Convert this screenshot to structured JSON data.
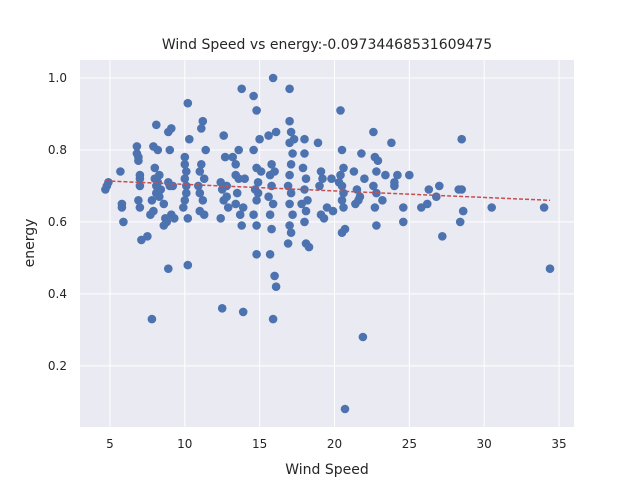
{
  "chart_data": {
    "type": "scatter",
    "title": "Wind Speed vs energy:-0.09734468531609475",
    "xlabel": "Wind Speed",
    "ylabel": "energy",
    "xlim": [
      3.0,
      36.0
    ],
    "ylim": [
      0.03,
      1.05
    ],
    "xticks": [
      5,
      10,
      15,
      20,
      25,
      30,
      35
    ],
    "yticks": [
      0.2,
      0.4,
      0.6,
      0.8,
      1.0
    ],
    "ytick_labels": [
      "0.2",
      "0.4",
      "0.6",
      "0.8",
      "1.0"
    ],
    "grid": true,
    "colors": {
      "background": "#eaeaf2",
      "grid": "#ffffff",
      "points": "#4c72b0",
      "trend": "#c44e52"
    },
    "trend_line": {
      "x": [
        4.7,
        34.4
      ],
      "y": [
        0.714,
        0.66
      ],
      "style": "dashed"
    },
    "points": [
      [
        4.7,
        0.69
      ],
      [
        4.8,
        0.7
      ],
      [
        4.9,
        0.71
      ],
      [
        5.7,
        0.74
      ],
      [
        5.8,
        0.65
      ],
      [
        5.8,
        0.64
      ],
      [
        5.9,
        0.6
      ],
      [
        6.8,
        0.81
      ],
      [
        6.8,
        0.79
      ],
      [
        6.9,
        0.78
      ],
      [
        6.9,
        0.77
      ],
      [
        7.0,
        0.73
      ],
      [
        7.0,
        0.72
      ],
      [
        7.0,
        0.7
      ],
      [
        6.9,
        0.66
      ],
      [
        7.0,
        0.64
      ],
      [
        7.1,
        0.55
      ],
      [
        7.5,
        0.56
      ],
      [
        7.8,
        0.33
      ],
      [
        7.9,
        0.81
      ],
      [
        8.0,
        0.75
      ],
      [
        8.0,
        0.72
      ],
      [
        8.1,
        0.7
      ],
      [
        8.1,
        0.68
      ],
      [
        7.8,
        0.66
      ],
      [
        7.9,
        0.63
      ],
      [
        7.7,
        0.62
      ],
      [
        8.1,
        0.87
      ],
      [
        8.2,
        0.8
      ],
      [
        8.3,
        0.73
      ],
      [
        8.2,
        0.71
      ],
      [
        8.4,
        0.69
      ],
      [
        8.3,
        0.67
      ],
      [
        8.6,
        0.65
      ],
      [
        8.7,
        0.61
      ],
      [
        8.6,
        0.59
      ],
      [
        8.8,
        0.6
      ],
      [
        8.9,
        0.47
      ],
      [
        8.9,
        0.85
      ],
      [
        9.1,
        0.86
      ],
      [
        9.0,
        0.8
      ],
      [
        9.2,
        0.7
      ],
      [
        9.1,
        0.62
      ],
      [
        9.3,
        0.61
      ],
      [
        9.0,
        0.7
      ],
      [
        8.9,
        0.71
      ],
      [
        10.0,
        0.78
      ],
      [
        10.0,
        0.76
      ],
      [
        10.1,
        0.74
      ],
      [
        10.0,
        0.72
      ],
      [
        10.1,
        0.7
      ],
      [
        10.1,
        0.68
      ],
      [
        10.0,
        0.66
      ],
      [
        9.9,
        0.64
      ],
      [
        10.2,
        0.61
      ],
      [
        10.2,
        0.48
      ],
      [
        10.2,
        0.93
      ],
      [
        10.3,
        0.83
      ],
      [
        10.9,
        0.7
      ],
      [
        11.0,
        0.74
      ],
      [
        11.0,
        0.68
      ],
      [
        11.1,
        0.76
      ],
      [
        11.1,
        0.86
      ],
      [
        11.2,
        0.88
      ],
      [
        11.2,
        0.66
      ],
      [
        11.3,
        0.62
      ],
      [
        11.0,
        0.63
      ],
      [
        11.4,
        0.8
      ],
      [
        11.3,
        0.72
      ],
      [
        12.4,
        0.71
      ],
      [
        12.4,
        0.61
      ],
      [
        12.5,
        0.36
      ],
      [
        12.6,
        0.84
      ],
      [
        12.7,
        0.78
      ],
      [
        12.8,
        0.7
      ],
      [
        12.8,
        0.67
      ],
      [
        12.9,
        0.64
      ],
      [
        12.6,
        0.66
      ],
      [
        12.5,
        0.69
      ],
      [
        13.2,
        0.78
      ],
      [
        13.4,
        0.76
      ],
      [
        13.4,
        0.73
      ],
      [
        13.6,
        0.72
      ],
      [
        13.5,
        0.68
      ],
      [
        13.4,
        0.65
      ],
      [
        13.7,
        0.62
      ],
      [
        13.6,
        0.8
      ],
      [
        13.8,
        0.59
      ],
      [
        13.8,
        0.97
      ],
      [
        13.9,
        0.35
      ],
      [
        14.0,
        0.72
      ],
      [
        13.9,
        0.64
      ],
      [
        14.6,
        0.95
      ],
      [
        14.8,
        0.91
      ],
      [
        14.6,
        0.8
      ],
      [
        14.8,
        0.75
      ],
      [
        14.9,
        0.71
      ],
      [
        14.7,
        0.69
      ],
      [
        14.8,
        0.66
      ],
      [
        14.6,
        0.62
      ],
      [
        14.8,
        0.59
      ],
      [
        14.8,
        0.51
      ],
      [
        15.0,
        0.83
      ],
      [
        15.1,
        0.74
      ],
      [
        14.9,
        0.68
      ],
      [
        15.6,
        0.84
      ],
      [
        15.8,
        0.76
      ],
      [
        15.7,
        0.73
      ],
      [
        15.8,
        0.7
      ],
      [
        15.6,
        0.67
      ],
      [
        15.9,
        0.65
      ],
      [
        15.7,
        0.62
      ],
      [
        15.8,
        0.58
      ],
      [
        15.7,
        0.51
      ],
      [
        15.9,
        1.0
      ],
      [
        15.9,
        0.33
      ],
      [
        16.0,
        0.45
      ],
      [
        16.1,
        0.42
      ],
      [
        16.1,
        0.85
      ],
      [
        16.0,
        0.74
      ],
      [
        17.0,
        0.97
      ],
      [
        17.0,
        0.88
      ],
      [
        17.1,
        0.85
      ],
      [
        17.0,
        0.82
      ],
      [
        17.2,
        0.79
      ],
      [
        17.1,
        0.76
      ],
      [
        17.0,
        0.73
      ],
      [
        16.9,
        0.7
      ],
      [
        17.1,
        0.68
      ],
      [
        17.0,
        0.65
      ],
      [
        17.2,
        0.62
      ],
      [
        17.0,
        0.59
      ],
      [
        17.1,
        0.57
      ],
      [
        16.9,
        0.54
      ],
      [
        17.3,
        0.83
      ],
      [
        18.0,
        0.83
      ],
      [
        18.0,
        0.79
      ],
      [
        17.9,
        0.75
      ],
      [
        18.1,
        0.72
      ],
      [
        18.0,
        0.69
      ],
      [
        18.2,
        0.66
      ],
      [
        18.1,
        0.63
      ],
      [
        18.0,
        0.6
      ],
      [
        18.1,
        0.54
      ],
      [
        18.3,
        0.53
      ],
      [
        17.8,
        0.65
      ],
      [
        18.9,
        0.82
      ],
      [
        19.1,
        0.74
      ],
      [
        19.2,
        0.72
      ],
      [
        19.0,
        0.7
      ],
      [
        19.1,
        0.62
      ],
      [
        19.3,
        0.61
      ],
      [
        19.5,
        0.64
      ],
      [
        19.9,
        0.63
      ],
      [
        19.8,
        0.72
      ],
      [
        20.4,
        0.91
      ],
      [
        20.5,
        0.8
      ],
      [
        20.6,
        0.75
      ],
      [
        20.4,
        0.73
      ],
      [
        20.5,
        0.7
      ],
      [
        20.6,
        0.68
      ],
      [
        20.5,
        0.66
      ],
      [
        20.6,
        0.64
      ],
      [
        20.5,
        0.57
      ],
      [
        20.7,
        0.58
      ],
      [
        20.7,
        0.08
      ],
      [
        20.3,
        0.71
      ],
      [
        21.3,
        0.74
      ],
      [
        21.5,
        0.69
      ],
      [
        21.6,
        0.66
      ],
      [
        21.4,
        0.65
      ],
      [
        21.8,
        0.79
      ],
      [
        21.9,
        0.28
      ],
      [
        21.7,
        0.67
      ],
      [
        22.0,
        0.72
      ],
      [
        22.6,
        0.85
      ],
      [
        22.7,
        0.78
      ],
      [
        22.9,
        0.77
      ],
      [
        22.8,
        0.74
      ],
      [
        22.6,
        0.7
      ],
      [
        22.8,
        0.68
      ],
      [
        22.7,
        0.64
      ],
      [
        22.8,
        0.59
      ],
      [
        23.2,
        0.66
      ],
      [
        23.4,
        0.73
      ],
      [
        23.8,
        0.82
      ],
      [
        24.0,
        0.7
      ],
      [
        24.2,
        0.73
      ],
      [
        24.0,
        0.71
      ],
      [
        24.6,
        0.64
      ],
      [
        24.6,
        0.6
      ],
      [
        25.0,
        0.73
      ],
      [
        25.8,
        0.64
      ],
      [
        26.2,
        0.65
      ],
      [
        26.3,
        0.69
      ],
      [
        26.8,
        0.67
      ],
      [
        27.0,
        0.7
      ],
      [
        27.2,
        0.56
      ],
      [
        28.3,
        0.69
      ],
      [
        28.4,
        0.6
      ],
      [
        28.5,
        0.69
      ],
      [
        28.5,
        0.83
      ],
      [
        28.6,
        0.63
      ],
      [
        30.5,
        0.64
      ],
      [
        34.0,
        0.64
      ],
      [
        34.4,
        0.47
      ]
    ]
  }
}
